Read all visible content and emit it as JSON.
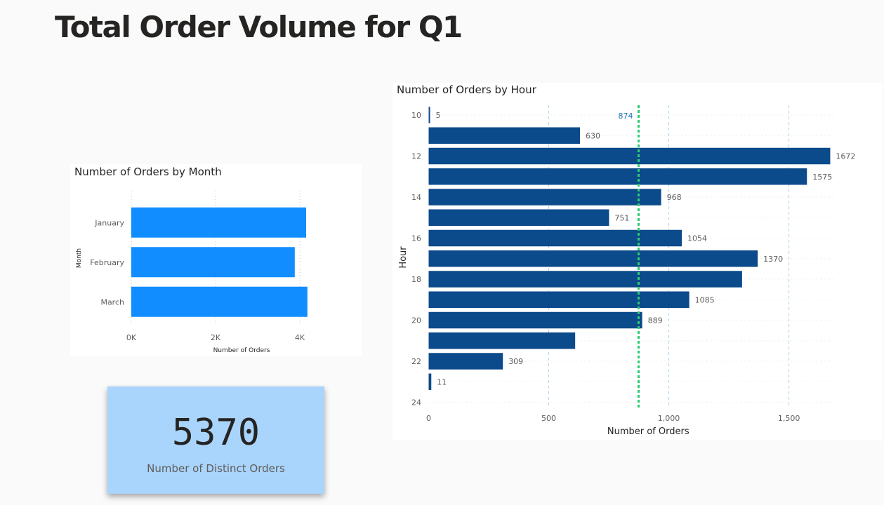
{
  "page": {
    "title": "Total Order Volume for Q1"
  },
  "card": {
    "value": "5370",
    "label": "Number of Distinct Orders"
  },
  "colors": {
    "month_bar": "#118dff",
    "hour_bar": "#0b4a8b",
    "average_line": "#2ecc71",
    "average_label": "#1a73b8",
    "card_background": "#a9d4fb"
  },
  "chart_data": [
    {
      "type": "bar",
      "orientation": "horizontal",
      "title": "Number of Orders by Month",
      "xlabel": "Number of Orders",
      "ylabel": "Month",
      "categories": [
        "January",
        "February",
        "March"
      ],
      "values": [
        4150,
        3880,
        4180
      ],
      "xlim": [
        0,
        4400
      ],
      "xticks": [
        0,
        2000,
        4000
      ],
      "xtick_labels": [
        "0K",
        "2K",
        "4K"
      ],
      "grid": true
    },
    {
      "type": "bar",
      "orientation": "horizontal",
      "title": "Number of Orders by Hour",
      "xlabel": "Number of Orders",
      "ylabel": "Hour",
      "categories": [
        10,
        11,
        12,
        13,
        14,
        15,
        16,
        17,
        18,
        19,
        20,
        21,
        22,
        23,
        24
      ],
      "values": [
        5,
        630,
        1672,
        1575,
        968,
        751,
        1054,
        1370,
        1305,
        1085,
        889,
        610,
        309,
        11,
        0
      ],
      "data_labels": [
        "5",
        "630",
        "1672",
        "1575",
        "968",
        "751",
        "1054",
        "1370",
        "",
        "1085",
        "889",
        "",
        "309",
        "11",
        ""
      ],
      "ytick_labels": [
        "10",
        "",
        "12",
        "",
        "14",
        "",
        "16",
        "",
        "18",
        "",
        "20",
        "",
        "22",
        "",
        "24"
      ],
      "xlim": [
        0,
        1700
      ],
      "xticks": [
        0,
        500,
        1000,
        1500
      ],
      "xtick_labels": [
        "0",
        "500",
        "1,000",
        "1,500"
      ],
      "average_line": {
        "value": 874,
        "label": "874"
      },
      "grid": true
    }
  ]
}
